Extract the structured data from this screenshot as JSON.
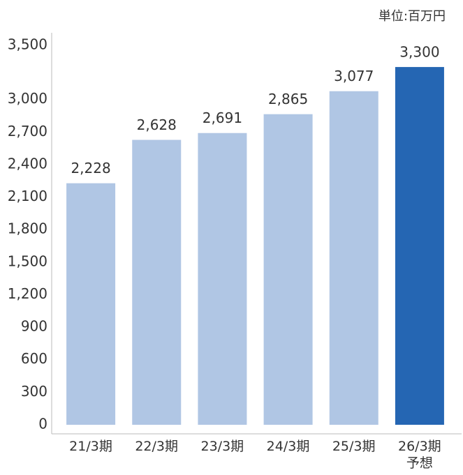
{
  "chart_data": {
    "type": "bar",
    "unit": "単位:百万円",
    "categories": [
      "21/3期",
      "22/3期",
      "23/3期",
      "24/3期",
      "25/3期",
      "26/3期\n予想"
    ],
    "values": [
      2228,
      2628,
      2691,
      2865,
      3077,
      3300
    ],
    "value_labels": [
      "2,228",
      "2,628",
      "2,691",
      "2,865",
      "3,077",
      "3,300"
    ],
    "colors": [
      "#b0c6e4",
      "#b0c6e4",
      "#b0c6e4",
      "#b0c6e4",
      "#b0c6e4",
      "#2566b3"
    ],
    "ylim": [
      0,
      3500
    ],
    "yticks": [
      0,
      300,
      600,
      900,
      {
        "value": 1200,
        "label": "1,200"
      },
      {
        "value": 1500,
        "label": "1,500"
      },
      {
        "value": 1800,
        "label": "1,800"
      },
      {
        "value": 2100,
        "label": "2,100"
      },
      {
        "value": 2400,
        "label": "2,400"
      },
      {
        "value": 2700,
        "label": "2,700"
      },
      {
        "value": 3000,
        "label": "3,000"
      },
      {
        "value": 3500,
        "label": "3,500"
      }
    ],
    "grid": false
  }
}
